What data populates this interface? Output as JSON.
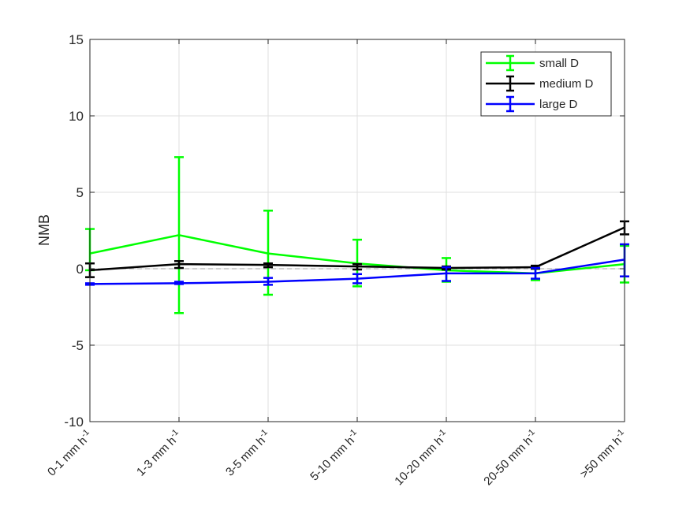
{
  "chart_data": {
    "type": "line",
    "categories": [
      "0-1 mm h",
      "1-3 mm h",
      "3-5 mm h",
      "5-10 mm h",
      "10-20 mm h",
      "20-50 mm h",
      ">50 mm h"
    ],
    "category_unit_sup": "-1",
    "xlabel": "",
    "ylabel": "NMB",
    "ylim": [
      -10,
      15
    ],
    "yticks": [
      -10,
      -5,
      0,
      5,
      10,
      15
    ],
    "y_tick_labels": [
      "-10",
      "-5",
      "0",
      "5",
      "10",
      "15"
    ],
    "grid": true,
    "reference_line": 0,
    "legend_position": "top-right",
    "series": [
      {
        "name": "small D",
        "color": "#00ff00",
        "values": [
          1.0,
          2.2,
          1.0,
          0.35,
          -0.1,
          -0.3,
          0.3
        ],
        "err_low": [
          -0.1,
          -2.9,
          -1.7,
          -1.15,
          -0.85,
          -0.75,
          -0.9
        ],
        "err_high": [
          2.6,
          7.3,
          3.8,
          1.9,
          0.7,
          0.0,
          1.5
        ]
      },
      {
        "name": "medium D",
        "color": "#000000",
        "values": [
          -0.1,
          0.3,
          0.25,
          0.15,
          0.05,
          0.1,
          2.7
        ],
        "err_low": [
          -0.55,
          0.05,
          0.1,
          -0.05,
          -0.05,
          0.0,
          2.25
        ],
        "err_high": [
          0.35,
          0.5,
          0.35,
          0.3,
          0.15,
          0.2,
          3.1
        ]
      },
      {
        "name": "large D",
        "color": "#0000ff",
        "values": [
          -1.0,
          -0.95,
          -0.85,
          -0.65,
          -0.3,
          -0.3,
          0.6
        ],
        "err_low": [
          -1.05,
          -1.0,
          -1.05,
          -0.95,
          -0.8,
          -0.65,
          -0.5
        ],
        "err_high": [
          -0.95,
          -0.85,
          -0.6,
          -0.35,
          0.1,
          0.05,
          1.6
        ]
      }
    ]
  },
  "colors": {
    "axis": "#262626",
    "grid": "#dfdfdf",
    "zero_line": "#a0a0a0"
  }
}
